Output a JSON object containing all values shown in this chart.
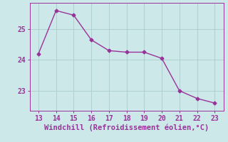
{
  "x": [
    13,
    14,
    15,
    16,
    17,
    18,
    19,
    20,
    21,
    22,
    23
  ],
  "y": [
    24.2,
    25.6,
    25.45,
    24.65,
    24.3,
    24.25,
    24.25,
    24.05,
    23.0,
    22.75,
    22.6
  ],
  "line_color": "#993399",
  "marker": "D",
  "marker_size": 2.5,
  "bg_color": "#cce8e8",
  "grid_color": "#aacccc",
  "xlabel": "Windchill (Refroidissement éolien,°C)",
  "xlabel_color": "#993399",
  "xlabel_fontsize": 7.5,
  "tick_color": "#993399",
  "tick_fontsize": 7,
  "xlim": [
    12.5,
    23.5
  ],
  "ylim": [
    22.35,
    25.85
  ],
  "xticks": [
    13,
    14,
    15,
    16,
    17,
    18,
    19,
    20,
    21,
    22,
    23
  ],
  "yticks": [
    23,
    24,
    25
  ]
}
